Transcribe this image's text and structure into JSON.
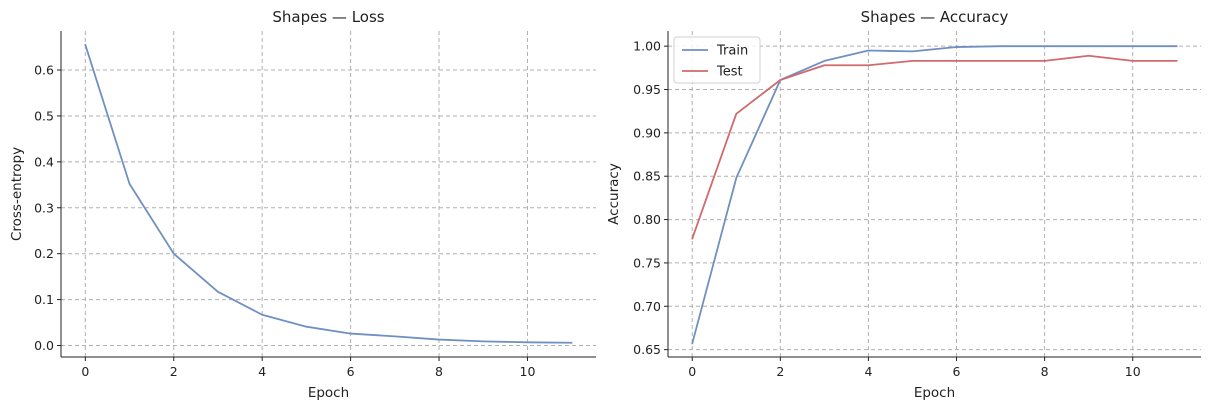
{
  "chart_data": [
    {
      "type": "line",
      "title": "Shapes — Loss",
      "xlabel": "Epoch",
      "ylabel": "Cross-entropy",
      "xlim": [
        -0.55,
        11.55
      ],
      "ylim": [
        -0.025,
        0.685
      ],
      "xticks": [
        0,
        2,
        4,
        6,
        8,
        10
      ],
      "yticks": [
        0.0,
        0.1,
        0.2,
        0.3,
        0.4,
        0.5,
        0.6
      ],
      "ytick_decimals": 1,
      "grid": true,
      "legend": null,
      "x": [
        0,
        1,
        2,
        3,
        4,
        5,
        6,
        7,
        8,
        9,
        10,
        11
      ],
      "series": [
        {
          "values": [
            0.655,
            0.352,
            0.2,
            0.117,
            0.067,
            0.041,
            0.026,
            0.02,
            0.013,
            0.009,
            0.007,
            0.006
          ],
          "color": "#7090c0"
        }
      ]
    },
    {
      "type": "line",
      "title": "Shapes — Accuracy",
      "xlabel": "Epoch",
      "ylabel": "Accuracy",
      "xlim": [
        -0.55,
        11.55
      ],
      "ylim": [
        0.6415,
        1.0175
      ],
      "xticks": [
        0,
        2,
        4,
        6,
        8,
        10
      ],
      "yticks": [
        0.65,
        0.7,
        0.75,
        0.8,
        0.85,
        0.9,
        0.95,
        1.0
      ],
      "ytick_decimals": 2,
      "grid": true,
      "legend": "top-left",
      "x": [
        0,
        1,
        2,
        3,
        4,
        5,
        6,
        7,
        8,
        9,
        10,
        11
      ],
      "series": [
        {
          "name": "Train",
          "values": [
            0.657,
            0.848,
            0.961,
            0.983,
            0.995,
            0.994,
            0.999,
            1.0,
            1.0,
            1.0,
            1.0,
            1.0
          ],
          "color": "#7090c0"
        },
        {
          "name": "Test",
          "values": [
            0.778,
            0.922,
            0.961,
            0.978,
            0.978,
            0.983,
            0.983,
            0.983,
            0.983,
            0.989,
            0.983,
            0.983
          ],
          "color": "#d06a6e"
        }
      ]
    }
  ]
}
